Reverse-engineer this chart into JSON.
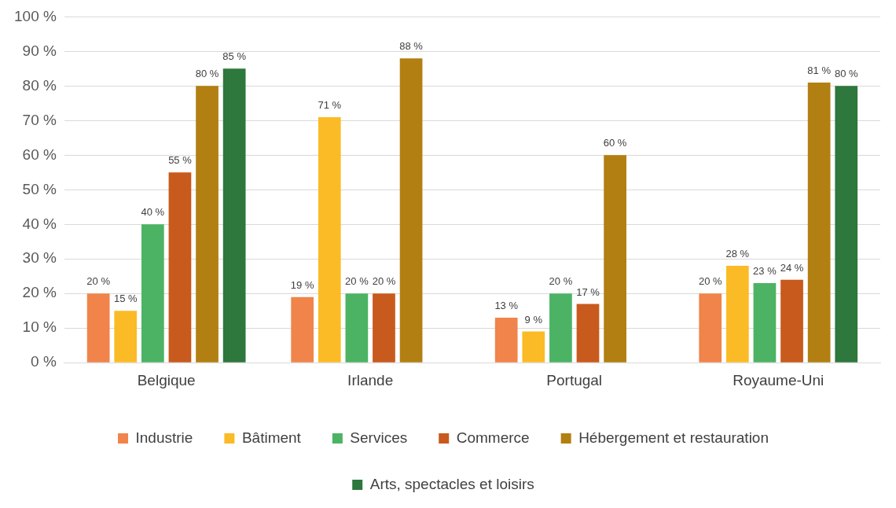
{
  "chart_data": {
    "type": "bar",
    "categories": [
      "Belgique",
      "Irlande",
      "Portugal",
      "Royaume-Uni"
    ],
    "series": [
      {
        "name": "Industrie",
        "color": "#f0844a",
        "values": [
          20,
          19,
          13,
          20
        ],
        "value_labels": [
          "20 %",
          "19 %",
          "13 %",
          "20 %"
        ]
      },
      {
        "name": "Bâtiment",
        "color": "#fbbb26",
        "values": [
          15,
          71,
          9,
          28
        ],
        "value_labels": [
          "15 %",
          "71 %",
          "9 %",
          "28 %"
        ]
      },
      {
        "name": "Services",
        "color": "#4cb364",
        "values": [
          40,
          20,
          20,
          23
        ],
        "value_labels": [
          "40 %",
          "20 %",
          "20 %",
          "23 %"
        ]
      },
      {
        "name": "Commerce",
        "color": "#c85a1d",
        "values": [
          55,
          20,
          17,
          24
        ],
        "value_labels": [
          "55 %",
          "20 %",
          "17 %",
          "24 %"
        ]
      },
      {
        "name": "Hébergement et restauration",
        "color": "#b27f12",
        "values": [
          80,
          88,
          60,
          81
        ],
        "value_labels": [
          "80 %",
          "88 %",
          "60 %",
          "81 %"
        ]
      },
      {
        "name": "Arts, spectacles et loisirs",
        "color": "#2e773d",
        "values": [
          85,
          null,
          null,
          80
        ],
        "value_labels": [
          "85 %",
          null,
          null,
          "80 %"
        ]
      }
    ],
    "ylim": [
      0,
      100
    ],
    "yticks": [
      {
        "value": 0,
        "label": "0 %"
      },
      {
        "value": 10,
        "label": "10 %"
      },
      {
        "value": 20,
        "label": "20 %"
      },
      {
        "value": 30,
        "label": "30 %"
      },
      {
        "value": 40,
        "label": "40 %"
      },
      {
        "value": 50,
        "label": "50 %"
      },
      {
        "value": 60,
        "label": "60 %"
      },
      {
        "value": 70,
        "label": "70 %"
      },
      {
        "value": 80,
        "label": "80 %"
      },
      {
        "value": 90,
        "label": "90 %"
      },
      {
        "value": 100,
        "label": "100 %"
      }
    ],
    "grid": "y",
    "legend": "bottom"
  }
}
